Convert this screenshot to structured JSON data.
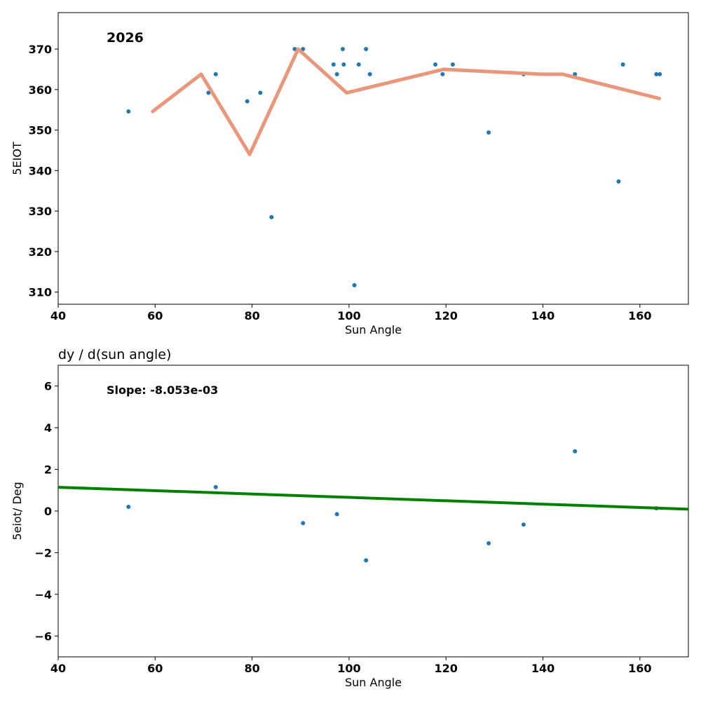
{
  "chart_data": [
    {
      "type": "scatter",
      "title": "",
      "annotation": "2026",
      "xlabel": "Sun Angle",
      "ylabel": "5EIOT",
      "xlim": [
        40,
        170
      ],
      "ylim": [
        307,
        379
      ],
      "x_ticks": [
        40,
        60,
        80,
        100,
        120,
        140,
        160
      ],
      "y_ticks": [
        310,
        320,
        330,
        340,
        350,
        360,
        370
      ],
      "colors": {
        "points": "#1f77b4",
        "line": "#e9967a"
      },
      "points": [
        {
          "x": 54.5,
          "y": 354.6
        },
        {
          "x": 71.0,
          "y": 359.2
        },
        {
          "x": 72.5,
          "y": 363.8
        },
        {
          "x": 79.0,
          "y": 357.1
        },
        {
          "x": 81.7,
          "y": 359.2
        },
        {
          "x": 84.0,
          "y": 328.5
        },
        {
          "x": 88.8,
          "y": 370.0
        },
        {
          "x": 90.5,
          "y": 370.0
        },
        {
          "x": 96.8,
          "y": 366.2
        },
        {
          "x": 97.5,
          "y": 363.8
        },
        {
          "x": 98.7,
          "y": 370.0
        },
        {
          "x": 98.9,
          "y": 366.2
        },
        {
          "x": 101.1,
          "y": 311.7
        },
        {
          "x": 102.0,
          "y": 366.2
        },
        {
          "x": 103.5,
          "y": 370.0
        },
        {
          "x": 104.3,
          "y": 363.8
        },
        {
          "x": 117.8,
          "y": 366.2
        },
        {
          "x": 119.3,
          "y": 363.8
        },
        {
          "x": 121.4,
          "y": 366.2
        },
        {
          "x": 128.8,
          "y": 349.4
        },
        {
          "x": 136.0,
          "y": 363.8
        },
        {
          "x": 146.6,
          "y": 363.8
        },
        {
          "x": 155.6,
          "y": 337.3
        },
        {
          "x": 156.5,
          "y": 366.2
        },
        {
          "x": 163.4,
          "y": 363.8
        },
        {
          "x": 164.1,
          "y": 363.8
        }
      ],
      "line": [
        {
          "x": 59.5,
          "y": 354.6
        },
        {
          "x": 69.5,
          "y": 363.8
        },
        {
          "x": 79.5,
          "y": 344.0
        },
        {
          "x": 89.5,
          "y": 370.0
        },
        {
          "x": 99.5,
          "y": 359.2
        },
        {
          "x": 119.5,
          "y": 365.0
        },
        {
          "x": 139.5,
          "y": 363.8
        },
        {
          "x": 144.0,
          "y": 363.8
        },
        {
          "x": 164.0,
          "y": 357.8
        }
      ]
    },
    {
      "type": "scatter",
      "title": "dy / d(sun angle)",
      "annotation": "Slope: -8.053e-03",
      "xlabel": "Sun Angle",
      "ylabel": "5eiot/ Deg",
      "xlim": [
        40,
        170
      ],
      "ylim": [
        -7,
        7
      ],
      "x_ticks": [
        40,
        60,
        80,
        100,
        120,
        140,
        160
      ],
      "y_ticks": [
        -6,
        -4,
        -2,
        0,
        2,
        4,
        6
      ],
      "colors": {
        "points": "#1f77b4",
        "line": "#008000"
      },
      "points": [
        {
          "x": 54.5,
          "y": 0.2
        },
        {
          "x": 72.5,
          "y": 1.15
        },
        {
          "x": 90.5,
          "y": -0.58
        },
        {
          "x": 97.5,
          "y": -0.15
        },
        {
          "x": 103.5,
          "y": -2.37
        },
        {
          "x": 128.8,
          "y": -1.55
        },
        {
          "x": 136.0,
          "y": -0.65
        },
        {
          "x": 146.6,
          "y": 2.87
        },
        {
          "x": 163.4,
          "y": 0.13
        }
      ],
      "line": [
        {
          "x": 40,
          "y": 1.14
        },
        {
          "x": 170,
          "y": 0.09
        }
      ]
    }
  ]
}
